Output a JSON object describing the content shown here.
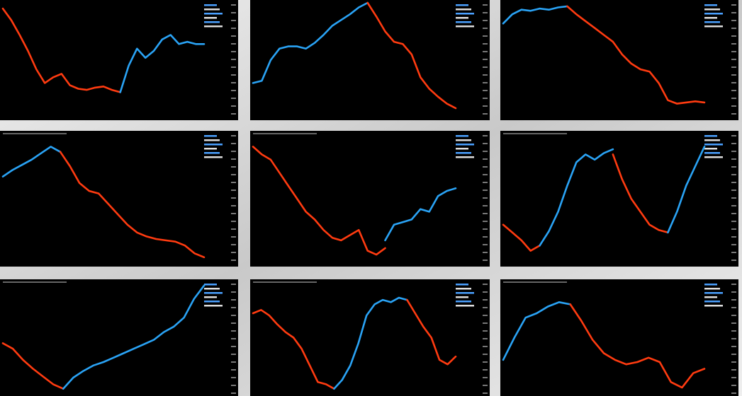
{
  "ylim": [
    0,
    100
  ],
  "panels": [
    {
      "segments": [
        {
          "color": "#ff3b10",
          "values": [
            95,
            85,
            72,
            58,
            42,
            30,
            35,
            38,
            28,
            25,
            24,
            26,
            27,
            24,
            22
          ]
        },
        {
          "color": "#2aa3f5",
          "values": [
            22,
            45,
            60,
            52,
            58,
            68,
            72,
            64,
            66,
            64,
            64
          ]
        }
      ]
    },
    {
      "segments": [
        {
          "color": "#2aa3f5",
          "values": [
            30,
            32,
            50,
            60,
            62,
            62,
            60,
            65,
            72,
            80,
            85,
            90,
            96,
            100
          ]
        },
        {
          "color": "#ff3b10",
          "values": [
            100,
            88,
            75,
            66,
            64,
            55,
            35,
            25,
            18,
            12,
            8
          ]
        }
      ]
    },
    {
      "segments": [
        {
          "color": "#2aa3f5",
          "values": [
            82,
            90,
            94,
            93,
            95,
            94,
            96,
            97
          ]
        },
        {
          "color": "#ff3b10",
          "values": [
            97,
            90,
            84,
            78,
            72,
            66,
            55,
            47,
            42,
            40,
            30,
            15,
            12,
            13,
            14,
            13
          ]
        }
      ]
    },
    {
      "segments": [
        {
          "color": "#2aa3f5",
          "values": [
            67,
            72,
            76,
            80,
            85,
            90,
            86
          ]
        },
        {
          "color": "#ff3b10",
          "values": [
            86,
            75,
            62,
            56,
            54,
            46,
            38,
            30,
            24,
            21,
            19,
            18,
            17,
            14,
            8,
            5
          ]
        }
      ]
    },
    {
      "segments": [
        {
          "color": "#ff3b10",
          "values": [
            90,
            84,
            80,
            70,
            60,
            50,
            40,
            34,
            26,
            20,
            18,
            22,
            26,
            10,
            7,
            12
          ]
        },
        {
          "color": "#2aa3f5",
          "values": [
            18,
            30,
            32,
            34,
            42,
            40,
            52,
            56,
            58
          ]
        }
      ]
    },
    {
      "segments": [
        {
          "color": "#ff3b10",
          "values": [
            30,
            24,
            18,
            10,
            14
          ]
        },
        {
          "color": "#2aa3f5",
          "values": [
            14,
            25,
            40,
            60,
            78,
            84,
            80,
            85,
            88
          ]
        },
        {
          "color": "#ff3b10",
          "values": [
            84,
            65,
            50,
            40,
            30,
            26,
            24
          ]
        },
        {
          "color": "#2aa3f5",
          "values": [
            24,
            40,
            60,
            75,
            90
          ]
        }
      ]
    },
    {
      "segments": [
        {
          "color": "#ff3b10",
          "values": [
            45,
            40,
            30,
            22,
            15,
            8,
            4
          ]
        },
        {
          "color": "#2aa3f5",
          "values": [
            4,
            14,
            20,
            25,
            28,
            32,
            36,
            40,
            44,
            48,
            55,
            60,
            68,
            85,
            97
          ]
        }
      ]
    },
    {
      "segments": [
        {
          "color": "#ff3b10",
          "values": [
            72,
            75,
            70,
            62,
            55,
            50,
            40,
            25,
            10,
            8,
            4
          ]
        },
        {
          "color": "#2aa3f5",
          "values": [
            4,
            12,
            25,
            45,
            70,
            80,
            84,
            82,
            86,
            84
          ]
        },
        {
          "color": "#ff3b10",
          "values": [
            84,
            72,
            60,
            50,
            30,
            26,
            33
          ]
        }
      ]
    },
    {
      "segments": [
        {
          "color": "#2aa3f5",
          "values": [
            30,
            50,
            68,
            72,
            78,
            82,
            80
          ]
        },
        {
          "color": "#ff3b10",
          "values": [
            80,
            65,
            48,
            36,
            30,
            26,
            28,
            32,
            28,
            10,
            5,
            18,
            22
          ]
        }
      ]
    }
  ]
}
